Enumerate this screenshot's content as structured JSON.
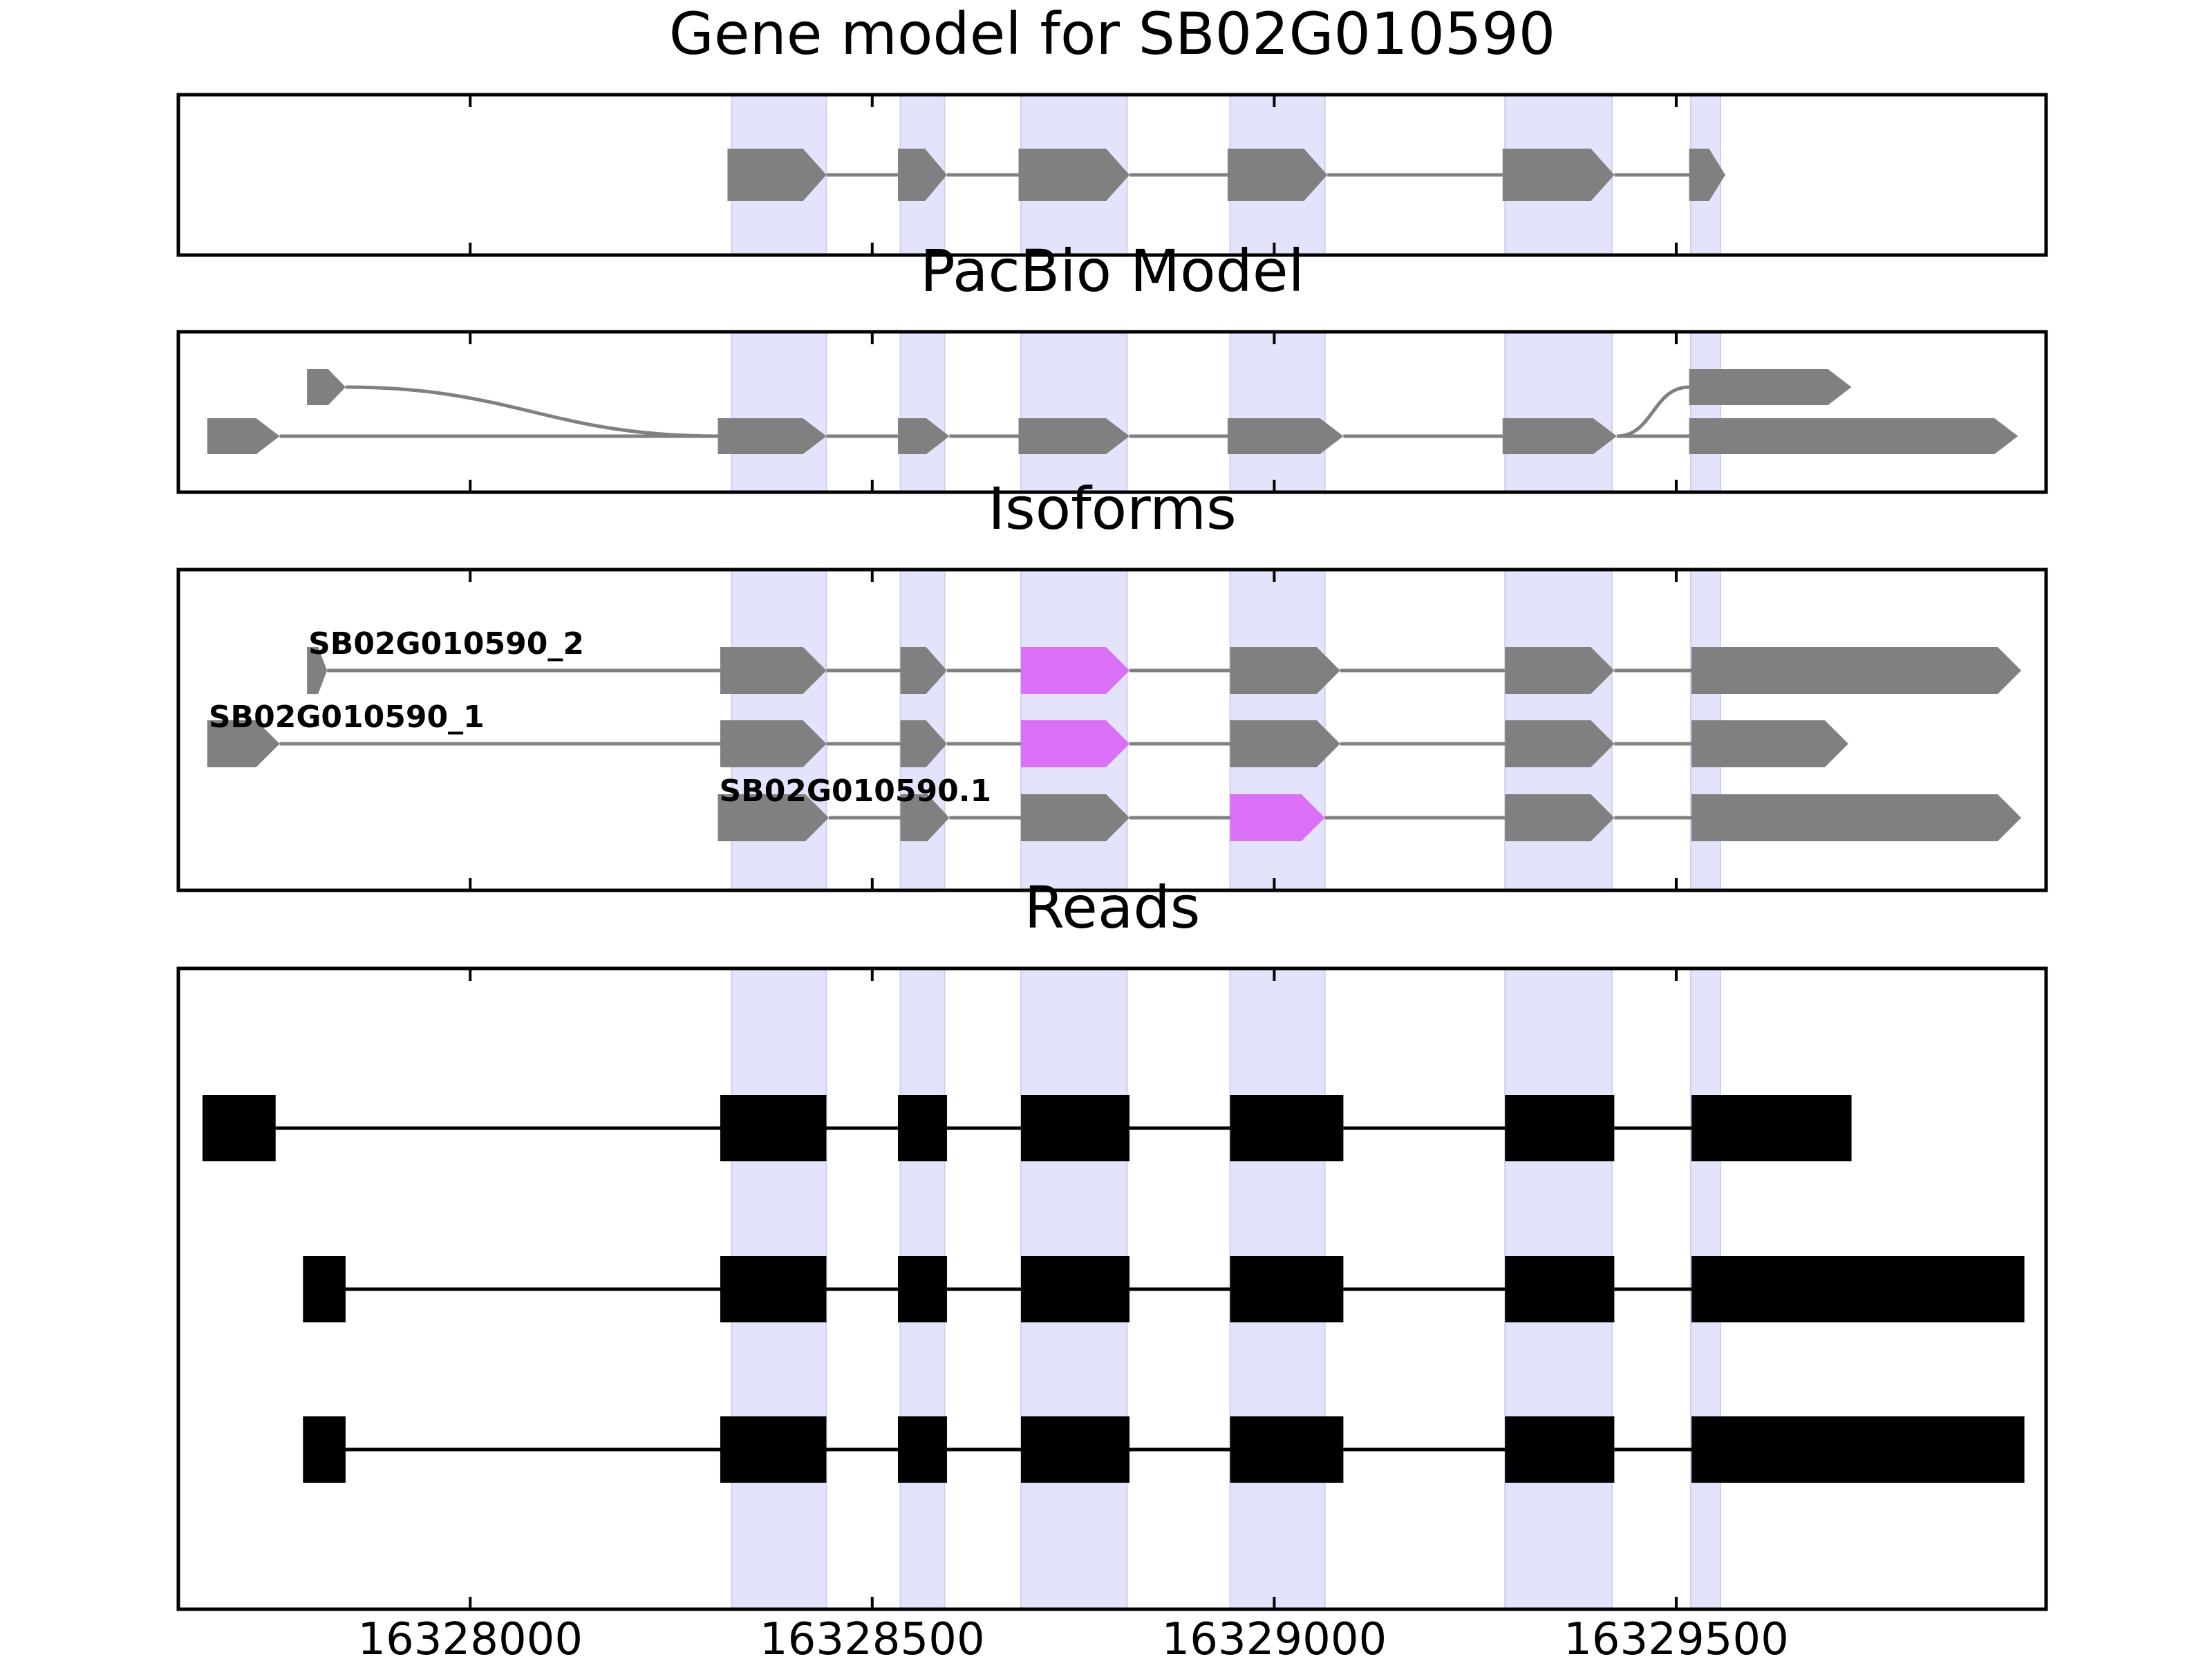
{
  "figure": {
    "background": "#ffffff"
  },
  "chart_data": {
    "type": "gene-structure",
    "title": "Gene model for SB02G010590",
    "xlim": [
      16327637,
      16329960
    ],
    "xticks": [
      16328000,
      16328500,
      16329000,
      16329500
    ],
    "xtick_labels": [
      "16328000",
      "16328500",
      "16329000",
      "16329500"
    ],
    "grid": false,
    "colors": {
      "exon": "#808080",
      "intron": "#808080",
      "highlight_exon": "#DA70F6",
      "read": "#000000",
      "exon_band": "#E3E3FC"
    },
    "exon_bands": [
      [
        16328325,
        16328443
      ],
      [
        16328535,
        16328590
      ],
      [
        16328685,
        16328817
      ],
      [
        16328945,
        16329063
      ],
      [
        16329287,
        16329420
      ],
      [
        16329518,
        16329555
      ]
    ],
    "panels": [
      {
        "title": "Gene model for SB02G010590",
        "tracks": [
          {
            "label": "",
            "exons": [
              [
                16328320,
                16328443
              ],
              [
                16328532,
                16328593
              ],
              [
                16328682,
                16328820
              ],
              [
                16328942,
                16329066
              ],
              [
                16329284,
                16329423
              ],
              [
                16329516,
                16329561
              ]
            ],
            "highlight_exons": []
          }
        ]
      },
      {
        "title": "PacBio Model",
        "tracks": [
          {
            "label": "",
            "exons": [
              [
                16327673,
                16327763
              ],
              [
                16328308,
                16328443
              ],
              [
                16328532,
                16328596
              ],
              [
                16328682,
                16328820
              ],
              [
                16328942,
                16329086
              ],
              [
                16329284,
                16329426
              ],
              [
                16329516,
                16329925
              ]
            ],
            "highlight_exons": []
          },
          {
            "label": "",
            "exons": [
              [
                16327797,
                16327845
              ],
              [
                16329516,
                16329718
              ]
            ],
            "highlight_exons": []
          }
        ]
      },
      {
        "title": "Isoforms",
        "tracks": [
          {
            "label": "SB02G010590_2",
            "exons": [
              [
                16327797,
                16327822
              ],
              [
                16328311,
                16328443
              ],
              [
                16328535,
                16328593
              ],
              [
                16328685,
                16328820
              ],
              [
                16328945,
                16329082
              ],
              [
                16329287,
                16329423
              ],
              [
                16329519,
                16329929
              ]
            ],
            "highlight_exons": [
              3
            ]
          },
          {
            "label": "SB02G010590_1",
            "exons": [
              [
                16327673,
                16327763
              ],
              [
                16328311,
                16328443
              ],
              [
                16328535,
                16328593
              ],
              [
                16328685,
                16328820
              ],
              [
                16328945,
                16329082
              ],
              [
                16329287,
                16329423
              ],
              [
                16329519,
                16329714
              ]
            ],
            "highlight_exons": [
              3
            ]
          },
          {
            "label": "SB02G010590.1",
            "exons": [
              [
                16328308,
                16328446
              ],
              [
                16328535,
                16328596
              ],
              [
                16328685,
                16328820
              ],
              [
                16328945,
                16329063
              ],
              [
                16329287,
                16329423
              ],
              [
                16329519,
                16329929
              ]
            ],
            "highlight_exons": [
              3
            ]
          }
        ]
      },
      {
        "title": "Reads",
        "tracks": [
          {
            "label": "",
            "exons": [
              [
                16327667,
                16327758
              ],
              [
                16328311,
                16328443
              ],
              [
                16328532,
                16328593
              ],
              [
                16328685,
                16328820
              ],
              [
                16328945,
                16329086
              ],
              [
                16329287,
                16329423
              ],
              [
                16329519,
                16329718
              ]
            ],
            "highlight_exons": []
          },
          {
            "label": "",
            "exons": [
              [
                16327792,
                16327845
              ],
              [
                16328311,
                16328443
              ],
              [
                16328532,
                16328593
              ],
              [
                16328685,
                16328820
              ],
              [
                16328945,
                16329086
              ],
              [
                16329287,
                16329423
              ],
              [
                16329519,
                16329933
              ]
            ],
            "highlight_exons": []
          },
          {
            "label": "",
            "exons": [
              [
                16327792,
                16327845
              ],
              [
                16328311,
                16328443
              ],
              [
                16328532,
                16328593
              ],
              [
                16328685,
                16328820
              ],
              [
                16328945,
                16329086
              ],
              [
                16329287,
                16329423
              ],
              [
                16329519,
                16329933
              ]
            ],
            "highlight_exons": []
          }
        ]
      }
    ]
  }
}
